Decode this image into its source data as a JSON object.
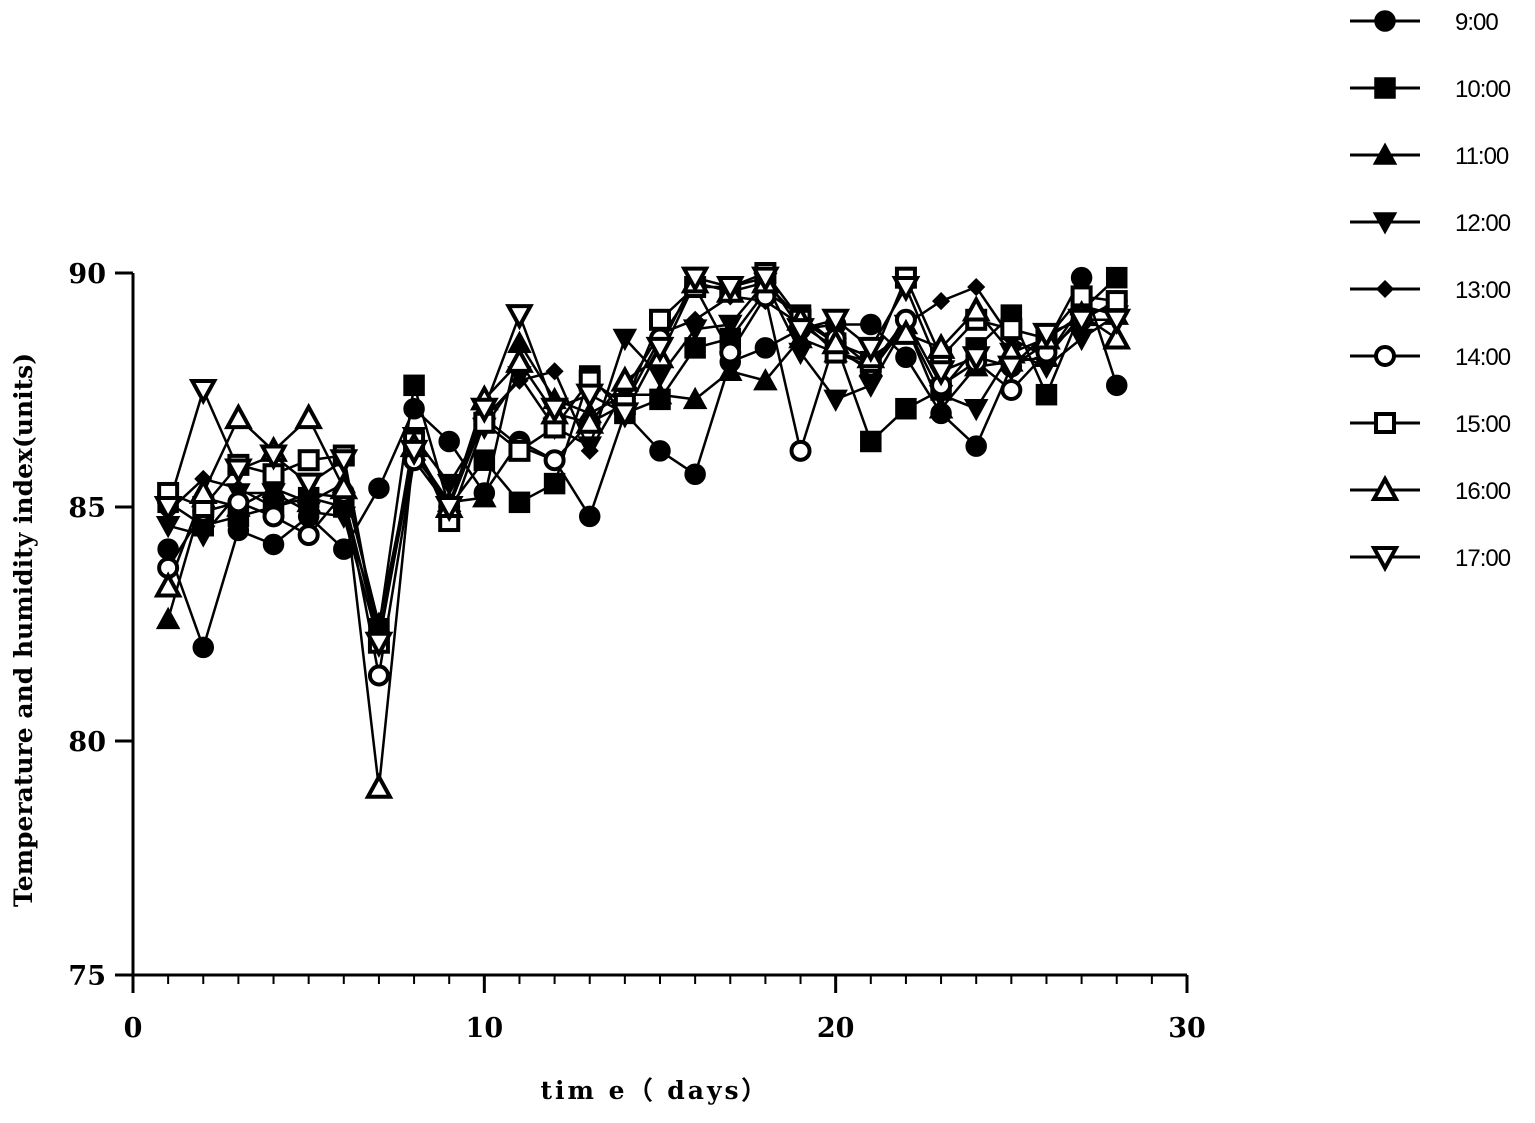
{
  "chart_data": {
    "type": "line",
    "title": "",
    "xlabel": "tim e（ days）",
    "ylabel": "Temperature and humidity index(units)",
    "xlim": [
      0,
      30
    ],
    "ylim": [
      75,
      90
    ],
    "x_ticks": [
      0,
      10,
      20,
      30
    ],
    "y_ticks": [
      75,
      80,
      85,
      90
    ],
    "x_minor_step": 1,
    "grid": false,
    "legend_position": "top-right",
    "x": [
      1,
      2,
      3,
      4,
      5,
      6,
      7,
      8,
      9,
      10,
      11,
      12,
      13,
      14,
      15,
      16,
      17,
      18,
      19,
      20,
      21,
      22,
      23,
      24,
      25,
      26,
      27,
      28
    ],
    "series": [
      {
        "name": "9:00",
        "marker": "circle-filled",
        "values": [
          84.1,
          82.0,
          84.5,
          84.2,
          84.8,
          84.1,
          85.4,
          87.1,
          86.4,
          85.3,
          86.4,
          86.0,
          84.8,
          87.0,
          86.2,
          85.7,
          88.1,
          88.4,
          88.8,
          88.9,
          88.9,
          88.2,
          87.0,
          86.3,
          88.0,
          88.5,
          89.9,
          87.6
        ]
      },
      {
        "name": "10:00",
        "marker": "square-filled",
        "values": [
          85.1,
          84.6,
          84.8,
          85.0,
          85.2,
          85.0,
          82.4,
          87.6,
          85.0,
          86.0,
          85.1,
          85.5,
          87.8,
          87.0,
          87.3,
          88.4,
          88.6,
          89.6,
          89.1,
          88.5,
          86.4,
          87.1,
          87.5,
          88.4,
          89.1,
          87.4,
          89.2,
          89.9
        ]
      },
      {
        "name": "11:00",
        "marker": "triangle-up-filled",
        "values": [
          82.6,
          85.2,
          85.0,
          85.4,
          85.1,
          85.5,
          82.5,
          86.2,
          85.1,
          85.2,
          88.5,
          87.3,
          87.0,
          87.4,
          87.4,
          87.3,
          87.9,
          87.7,
          88.6,
          88.3,
          88.0,
          88.9,
          87.1,
          88.0,
          88.1,
          88.2,
          89.3,
          89.1
        ]
      },
      {
        "name": "12:00",
        "marker": "triangle-down-filled",
        "values": [
          84.6,
          84.4,
          85.3,
          85.3,
          84.9,
          84.8,
          82.1,
          86.5,
          85.5,
          86.7,
          87.8,
          86.7,
          86.3,
          88.6,
          87.8,
          88.8,
          88.9,
          89.8,
          88.3,
          87.3,
          87.6,
          88.9,
          87.4,
          87.1,
          88.3,
          88.0,
          88.6,
          89.1
        ]
      },
      {
        "name": "13:00",
        "marker": "diamond-filled",
        "values": [
          84.9,
          85.6,
          85.4,
          85.0,
          85.3,
          85.2,
          82.2,
          86.1,
          85.1,
          86.9,
          87.7,
          87.9,
          86.2,
          87.5,
          88.7,
          89.0,
          89.5,
          89.4,
          88.9,
          88.4,
          87.9,
          88.9,
          89.4,
          89.7,
          88.6,
          88.2,
          89.1,
          89.3
        ]
      },
      {
        "name": "14:00",
        "marker": "circle-open",
        "values": [
          83.7,
          84.9,
          85.1,
          84.8,
          84.4,
          85.3,
          81.4,
          86.0,
          85.0,
          86.9,
          86.3,
          86.0,
          86.8,
          87.2,
          88.6,
          89.7,
          88.3,
          89.5,
          86.2,
          88.6,
          88.0,
          89.0,
          87.6,
          88.1,
          87.5,
          88.3,
          89.0,
          89.4
        ]
      },
      {
        "name": "15:00",
        "marker": "square-open",
        "values": [
          85.3,
          85.0,
          85.9,
          85.7,
          86.0,
          86.1,
          82.1,
          86.4,
          84.7,
          86.8,
          86.2,
          86.7,
          87.7,
          87.2,
          89.0,
          89.7,
          89.7,
          90.0,
          89.0,
          88.3,
          88.1,
          89.9,
          88.2,
          89.0,
          88.8,
          88.6,
          89.5,
          89.4
        ]
      },
      {
        "name": "16:00",
        "marker": "triangle-up-open",
        "values": [
          83.3,
          85.3,
          86.9,
          86.2,
          86.9,
          85.4,
          79.0,
          86.3,
          85.0,
          87.3,
          88.1,
          87.0,
          86.8,
          87.7,
          88.2,
          89.8,
          89.6,
          89.8,
          89.0,
          88.5,
          88.2,
          88.7,
          88.4,
          89.2,
          88.3,
          88.6,
          89.1,
          88.6
        ]
      },
      {
        "name": "17:00",
        "marker": "triangle-down-open",
        "values": [
          85.0,
          87.5,
          85.8,
          86.1,
          85.5,
          86.0,
          82.1,
          86.2,
          85.0,
          87.1,
          89.1,
          87.1,
          87.4,
          87.0,
          88.4,
          89.9,
          89.7,
          89.9,
          88.8,
          89.0,
          88.4,
          89.7,
          87.9,
          88.2,
          88.0,
          88.7,
          89.0,
          89.0
        ]
      }
    ]
  }
}
